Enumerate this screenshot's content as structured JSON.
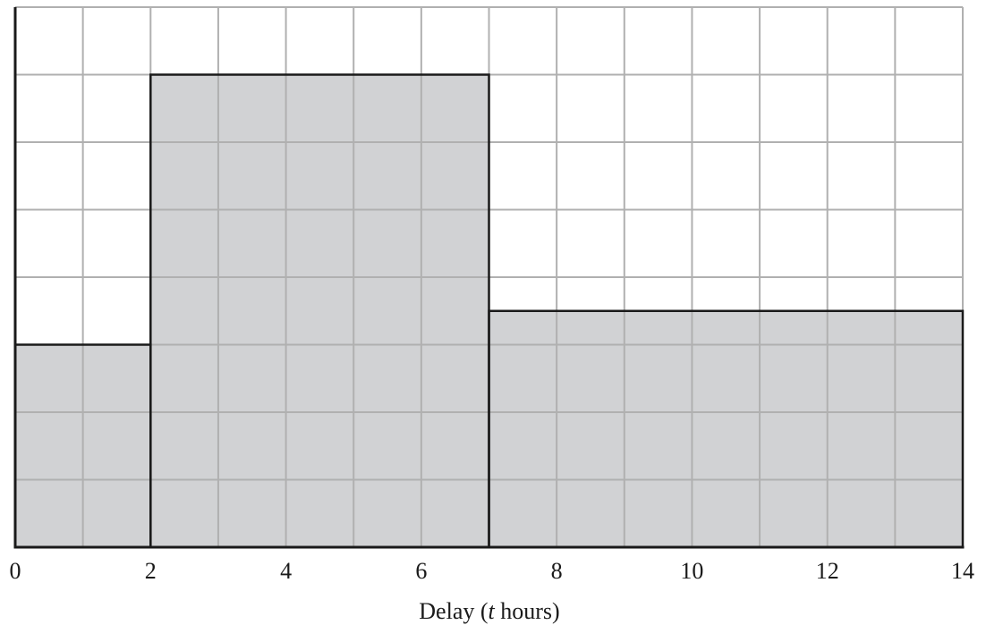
{
  "chart_data": {
    "type": "histogram",
    "xlabel_prefix": "Delay (",
    "xlabel_var": "t",
    "xlabel_suffix": " hours)",
    "ylabel": "",
    "xlim": [
      0,
      14
    ],
    "x_ticks": [
      "0",
      "2",
      "4",
      "6",
      "8",
      "10",
      "12",
      "14"
    ],
    "grid": true,
    "grid_x_step": 1,
    "grid_y_step": 1,
    "ylim": [
      0,
      7
    ],
    "bins": [
      {
        "x0": 0,
        "x1": 2,
        "height": 3
      },
      {
        "x0": 2,
        "x1": 7,
        "height": 7
      },
      {
        "x0": 7,
        "x1": 14,
        "height": 3.5
      }
    ],
    "colors": {
      "bar_fill": "#d1d2d4",
      "grid": "#b0b0b0",
      "outline": "#1a1a1a"
    }
  }
}
